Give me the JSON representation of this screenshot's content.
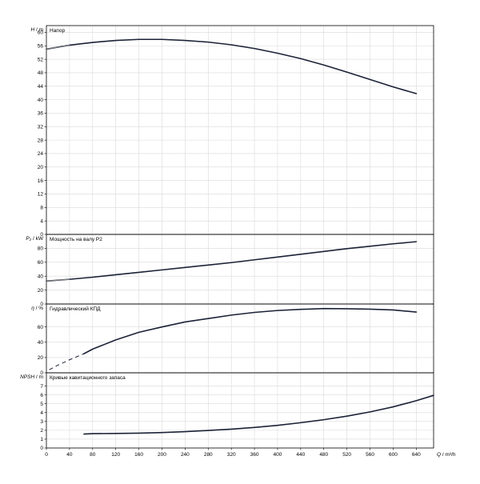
{
  "chart_data": [
    {
      "id": "head",
      "type": "line",
      "title": "Напор",
      "ylabel_symbol": "H",
      "ylabel_unit": " / m",
      "ylim": [
        0,
        62
      ],
      "yticks": [
        0,
        4,
        8,
        12,
        16,
        20,
        24,
        28,
        32,
        36,
        40,
        44,
        48,
        52,
        56,
        60
      ],
      "series": [
        {
          "style": "main",
          "points": [
            [
              0,
              55.0
            ],
            [
              40,
              56.2
            ],
            [
              80,
              57.0
            ],
            [
              120,
              57.6
            ],
            [
              160,
              57.9
            ],
            [
              200,
              57.9
            ],
            [
              240,
              57.6
            ],
            [
              280,
              57.1
            ],
            [
              320,
              56.3
            ],
            [
              360,
              55.2
            ],
            [
              400,
              53.8
            ],
            [
              440,
              52.2
            ],
            [
              480,
              50.3
            ],
            [
              520,
              48.2
            ],
            [
              560,
              46.0
            ],
            [
              600,
              43.8
            ],
            [
              640,
              41.8
            ]
          ]
        }
      ]
    },
    {
      "id": "power",
      "type": "line",
      "title": "Мощность на валу P2",
      "ylabel_symbol": "P₂",
      "ylabel_unit": " / kW",
      "ylim": [
        0,
        100
      ],
      "yticks": [
        0,
        20,
        40,
        60,
        80
      ],
      "series": [
        {
          "style": "main",
          "points": [
            [
              0,
              33
            ],
            [
              40,
              35.5
            ],
            [
              80,
              38.5
            ],
            [
              120,
              42
            ],
            [
              160,
              45.5
            ],
            [
              200,
              49
            ],
            [
              240,
              52.5
            ],
            [
              280,
              56
            ],
            [
              320,
              59.5
            ],
            [
              360,
              63.5
            ],
            [
              400,
              67.5
            ],
            [
              440,
              71.5
            ],
            [
              480,
              75.5
            ],
            [
              520,
              79.5
            ],
            [
              560,
              83
            ],
            [
              600,
              86.5
            ],
            [
              640,
              89.5
            ]
          ]
        }
      ]
    },
    {
      "id": "efficiency",
      "type": "line",
      "title": "Гидравлический КПД",
      "ylabel_symbol": "η",
      "ylabel_unit": " / %",
      "ylim": [
        0,
        90
      ],
      "yticks": [
        0,
        20,
        40,
        60
      ],
      "series": [
        {
          "style": "dashed",
          "points": [
            [
              5,
              4
            ],
            [
              20,
              10
            ],
            [
              40,
              17
            ],
            [
              65,
              25
            ]
          ]
        },
        {
          "style": "main",
          "points": [
            [
              65,
              25
            ],
            [
              80,
              31
            ],
            [
              120,
              43
            ],
            [
              160,
              53
            ],
            [
              200,
              60
            ],
            [
              240,
              66.5
            ],
            [
              280,
              71
            ],
            [
              320,
              75.5
            ],
            [
              360,
              79
            ],
            [
              400,
              81.5
            ],
            [
              440,
              83
            ],
            [
              480,
              84
            ],
            [
              520,
              83.8
            ],
            [
              560,
              83.3
            ],
            [
              600,
              82.2
            ],
            [
              640,
              79.5
            ]
          ]
        }
      ]
    },
    {
      "id": "npsh",
      "type": "line",
      "title": "Кривые кавитационного запаса",
      "ylabel_symbol": "NPSH",
      "ylabel_unit": " / m",
      "ylim": [
        0,
        8.5
      ],
      "yticks": [
        0,
        1,
        2,
        3,
        4,
        5,
        6,
        7
      ],
      "series": [
        {
          "style": "main",
          "points": [
            [
              65,
              1.58
            ],
            [
              80,
              1.62
            ],
            [
              120,
              1.64
            ],
            [
              160,
              1.68
            ],
            [
              200,
              1.75
            ],
            [
              240,
              1.85
            ],
            [
              280,
              1.98
            ],
            [
              320,
              2.13
            ],
            [
              360,
              2.32
            ],
            [
              400,
              2.56
            ],
            [
              440,
              2.86
            ],
            [
              480,
              3.2
            ],
            [
              520,
              3.6
            ],
            [
              560,
              4.08
            ],
            [
              600,
              4.65
            ],
            [
              640,
              5.35
            ],
            [
              670,
              5.95
            ]
          ]
        }
      ]
    }
  ],
  "x_axis": {
    "symbol": "Q",
    "unit": " / m³/h",
    "xlim": [
      0,
      670
    ],
    "ticks": [
      0,
      40,
      80,
      120,
      160,
      200,
      240,
      280,
      320,
      360,
      400,
      440,
      480,
      520,
      560,
      600,
      640
    ]
  },
  "colors": {
    "curve": "#1a2236",
    "extension": "#8a8a8a",
    "grid": "#d9d9d9",
    "frame": "#000000"
  },
  "grid": true
}
